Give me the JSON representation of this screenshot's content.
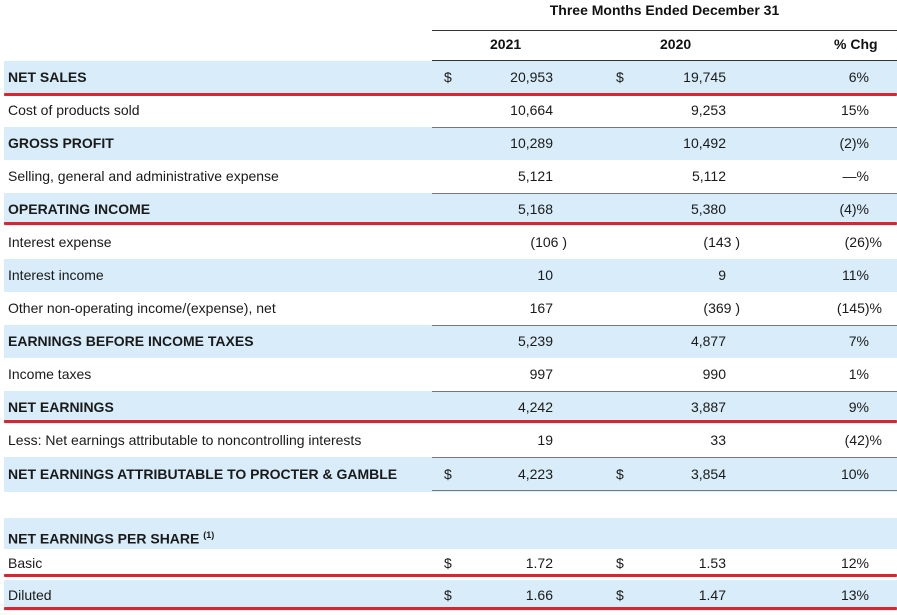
{
  "header": {
    "period": "Three Months Ended December 31",
    "col_2021": "2021",
    "col_2020": "2020",
    "col_chg": "% Chg"
  },
  "rows": [
    {
      "label": "NET SALES",
      "d1": "$",
      "v2021": "20,953",
      "d2": "$",
      "v2020": "19,745",
      "chg": "6%"
    },
    {
      "label": "Cost of products sold",
      "d1": "",
      "v2021": "10,664",
      "d2": "",
      "v2020": "9,253",
      "chg": "15%"
    },
    {
      "label": "GROSS PROFIT",
      "d1": "",
      "v2021": "10,289",
      "d2": "",
      "v2020": "10,492",
      "chg": "(2)%"
    },
    {
      "label": "Selling, general and administrative expense",
      "d1": "",
      "v2021": "5,121",
      "d2": "",
      "v2020": "5,112",
      "chg": "—%"
    },
    {
      "label": "OPERATING INCOME",
      "d1": "",
      "v2021": "5,168",
      "d2": "",
      "v2020": "5,380",
      "chg": "(4)%"
    },
    {
      "label": "Interest expense",
      "d1": "",
      "v2021": "(106 )",
      "d2": "",
      "v2020": "(143 )",
      "chg": "(26)%"
    },
    {
      "label": "Interest income",
      "d1": "",
      "v2021": "10",
      "d2": "",
      "v2020": "9",
      "chg": "11%"
    },
    {
      "label": "Other non-operating income/(expense), net",
      "d1": "",
      "v2021": "167",
      "d2": "",
      "v2020": "(369 )",
      "chg": "(145)%"
    },
    {
      "label": "EARNINGS BEFORE INCOME TAXES",
      "d1": "",
      "v2021": "5,239",
      "d2": "",
      "v2020": "4,877",
      "chg": "7%"
    },
    {
      "label": "Income taxes",
      "d1": "",
      "v2021": "997",
      "d2": "",
      "v2020": "990",
      "chg": "1%"
    },
    {
      "label": "NET EARNINGS",
      "d1": "",
      "v2021": "4,242",
      "d2": "",
      "v2020": "3,887",
      "chg": "9%"
    },
    {
      "label": "Less: Net earnings attributable to noncontrolling interests",
      "d1": "",
      "v2021": "19",
      "d2": "",
      "v2020": "33",
      "chg": "(42)%"
    },
    {
      "label": "NET EARNINGS ATTRIBUTABLE TO PROCTER & GAMBLE",
      "d1": "$",
      "v2021": "4,223",
      "d2": "$",
      "v2020": "3,854",
      "chg": "10%"
    },
    {
      "label": "NET EARNINGS PER SHARE",
      "sup": "(1)",
      "d1": "",
      "v2021": "",
      "d2": "",
      "v2020": "",
      "chg": ""
    },
    {
      "label": "Basic",
      "d1": "$",
      "v2021": "1.72",
      "d2": "$",
      "v2020": "1.53",
      "chg": "12%"
    },
    {
      "label": "Diluted",
      "d1": "$",
      "v2021": "1.66",
      "d2": "$",
      "v2020": "1.47",
      "chg": "13%"
    }
  ],
  "colors": {
    "row_shade": "#d8ecf9",
    "highlight_line": "#d9252f"
  }
}
